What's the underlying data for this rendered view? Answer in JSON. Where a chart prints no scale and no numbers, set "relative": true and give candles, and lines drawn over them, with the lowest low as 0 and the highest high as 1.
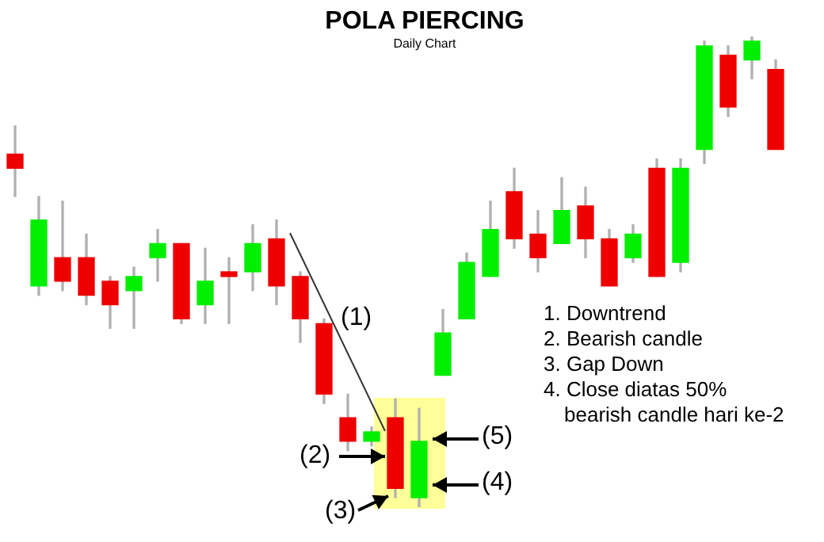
{
  "chart_data": {
    "type": "candlestick",
    "title": "POLA PIERCING",
    "subtitle": "Daily Chart",
    "relative": true,
    "categories": [
      null,
      null,
      null,
      null,
      null,
      null,
      null,
      null,
      null,
      null,
      null,
      null,
      null,
      null,
      null,
      null,
      null,
      null,
      null,
      null,
      null,
      null,
      null,
      null,
      null,
      null,
      null,
      null,
      null,
      null,
      null,
      null,
      null
    ],
    "ohlc": [
      [
        0.75,
        0.81,
        0.66,
        0.72
      ],
      [
        0.47,
        0.66,
        0.45,
        0.61
      ],
      [
        0.53,
        0.65,
        0.46,
        0.48
      ],
      [
        0.53,
        0.58,
        0.43,
        0.45
      ],
      [
        0.48,
        0.49,
        0.38,
        0.43
      ],
      [
        0.46,
        0.51,
        0.38,
        0.49
      ],
      [
        0.53,
        0.59,
        0.48,
        0.56
      ],
      [
        0.56,
        0.56,
        0.39,
        0.4
      ],
      [
        0.43,
        0.55,
        0.39,
        0.48
      ],
      [
        0.5,
        0.53,
        0.39,
        0.49
      ],
      [
        0.5,
        0.6,
        0.46,
        0.56
      ],
      [
        0.57,
        0.61,
        0.43,
        0.47
      ],
      [
        0.49,
        0.5,
        0.35,
        0.4
      ],
      [
        0.39,
        0.4,
        0.22,
        0.24
      ],
      [
        0.19,
        0.24,
        0.12,
        0.14
      ],
      [
        0.14,
        0.17,
        0.13,
        0.16
      ],
      [
        0.19,
        0.23,
        0.02,
        0.04
      ],
      [
        0.02,
        0.21,
        0,
        0.14
      ],
      [
        0.28,
        0.42,
        0.28,
        0.37
      ],
      [
        0.4,
        0.54,
        0.4,
        0.52
      ],
      [
        0.49,
        0.65,
        0.49,
        0.59
      ],
      [
        0.67,
        0.72,
        0.55,
        0.57
      ],
      [
        0.58,
        0.63,
        0.5,
        0.53
      ],
      [
        0.56,
        0.7,
        0.56,
        0.63
      ],
      [
        0.64,
        0.68,
        0.53,
        0.57
      ],
      [
        0.57,
        0.59,
        0.47,
        0.47
      ],
      [
        0.53,
        0.6,
        0.52,
        0.58
      ],
      [
        0.72,
        0.74,
        0.49,
        0.49
      ],
      [
        0.52,
        0.74,
        0.5,
        0.72
      ],
      [
        0.76,
        0.99,
        0.73,
        0.98
      ],
      [
        0.96,
        0.98,
        0.83,
        0.85
      ],
      [
        0.95,
        1,
        0.91,
        0.99
      ],
      [
        0.93,
        0.95,
        0.76,
        0.76
      ]
    ],
    "colors": [
      "#ee0000",
      "#00ee00",
      "#ee0000",
      "#ee0000",
      "#ee0000",
      "#00ee00",
      "#00ee00",
      "#ee0000",
      "#00ee00",
      "#ee0000",
      "#00ee00",
      "#ee0000",
      "#ee0000",
      "#ee0000",
      "#ee0000",
      "#00ee00",
      "#ee0000",
      "#00ee00",
      "#00ee00",
      "#00ee00",
      "#00ee00",
      "#ee0000",
      "#ee0000",
      "#00ee00",
      "#ee0000",
      "#ee0000",
      "#00ee00",
      "#ee0000",
      "#00ee00",
      "#00ee00",
      "#ee0000",
      "#00ee00",
      "#ee0000"
    ],
    "annotations": [
      "(1)",
      "(2)",
      "(3)",
      "(5)",
      "(4)",
      "1. Downtrend",
      "2. Bearish candle",
      "3. Gap Down",
      "4. Close diatas 50% bearish candle hari ke-2"
    ]
  }
}
